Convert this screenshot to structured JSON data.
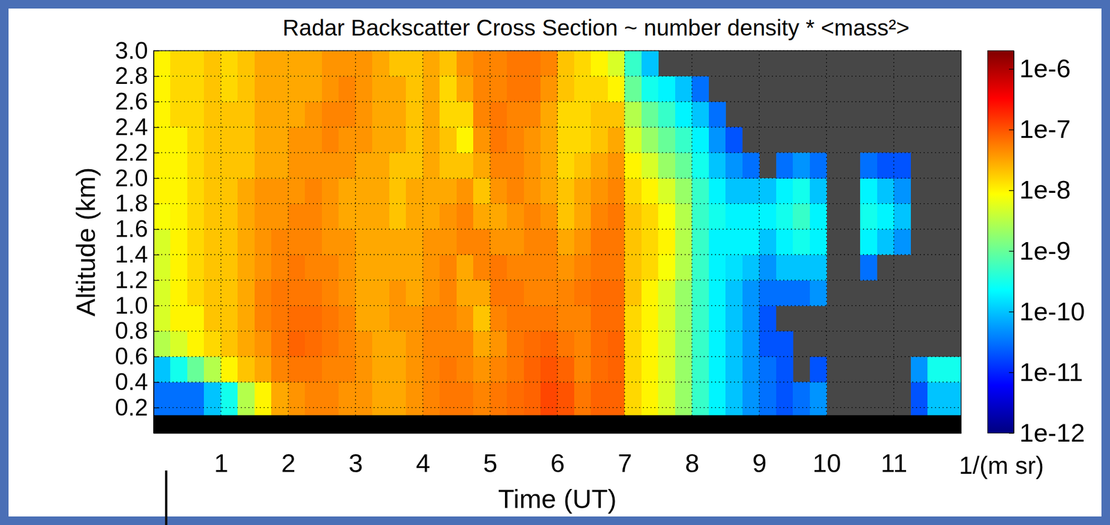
{
  "chart_data": {
    "type": "heatmap",
    "title": "Radar Backscatter Cross Section ~ number density * <mass²>",
    "xlabel": "Time (UT)",
    "ylabel": "Altitude (km)",
    "xlim": [
      0,
      12
    ],
    "ylim": [
      0,
      3
    ],
    "xticks": [
      1,
      2,
      3,
      4,
      5,
      6,
      7,
      8,
      9,
      10,
      11
    ],
    "yticks": [
      0.2,
      0.4,
      0.6,
      0.8,
      {
        "value": 1,
        "label": "1.0"
      },
      1.2,
      1.4,
      1.6,
      1.8,
      {
        "value": 2,
        "label": "2.0"
      },
      2.2,
      2.4,
      2.6,
      2.8,
      {
        "value": 3,
        "label": "3.0"
      }
    ],
    "grid": true,
    "x_edges": [
      0,
      0.25,
      0.5,
      0.75,
      1,
      1.25,
      1.5,
      1.75,
      2,
      2.25,
      2.5,
      2.75,
      3,
      3.25,
      3.5,
      3.75,
      4,
      4.25,
      4.5,
      4.75,
      5,
      5.25,
      5.5,
      5.75,
      6,
      6.25,
      6.5,
      6.75,
      7,
      7.25,
      7.5,
      7.75,
      8,
      8.25,
      8.5,
      8.75,
      9,
      9.25,
      9.5,
      9.75,
      10,
      10.25,
      10.5,
      10.75,
      11,
      11.25,
      11.5,
      11.75,
      12
    ],
    "y_edges": [
      0.14,
      0.4,
      0.6,
      0.8,
      1,
      1.2,
      1.4,
      1.6,
      1.8,
      2,
      2.2,
      2.4,
      2.6,
      2.8,
      3
    ],
    "z": [
      [
        3e-11,
        1e-10,
        3e-09,
        5e-09,
        5e-09,
        5e-09,
        5e-09,
        8e-09,
        1e-08,
        1e-08,
        1e-08,
        1e-08,
        1e-08,
        1e-08
      ],
      [
        3e-11,
        3e-10,
        5e-09,
        1e-08,
        1e-08,
        1e-08,
        1e-08,
        1e-08,
        1e-08,
        1e-08,
        1e-08,
        1.5e-08,
        1.5e-08,
        1.5e-08
      ],
      [
        3e-11,
        1e-09,
        1e-08,
        1e-08,
        1.5e-08,
        1.5e-08,
        1.5e-08,
        1.5e-08,
        1.5e-08,
        1.5e-08,
        1.5e-08,
        1.5e-08,
        1.5e-08,
        1.5e-08
      ],
      [
        1e-10,
        3e-09,
        1.5e-08,
        2e-08,
        2e-08,
        2e-08,
        2e-08,
        2e-08,
        2e-08,
        2e-08,
        2e-08,
        2e-08,
        2e-08,
        2e-08
      ],
      [
        3e-10,
        1e-08,
        2e-08,
        2e-08,
        2e-08,
        2e-08,
        2e-08,
        2e-08,
        2e-08,
        2e-08,
        2e-08,
        2e-08,
        1.5e-08,
        1.5e-08
      ],
      [
        3e-09,
        2e-08,
        3e-08,
        3e-08,
        3e-08,
        3e-08,
        3e-08,
        3e-08,
        3e-08,
        2e-08,
        2e-08,
        2e-08,
        2e-08,
        2e-08
      ],
      [
        1e-08,
        3e-08,
        4e-08,
        5e-08,
        5e-08,
        4e-08,
        4e-08,
        4e-08,
        4e-08,
        3e-08,
        3e-08,
        3e-08,
        3e-08,
        3e-08
      ],
      [
        3e-08,
        5e-08,
        6e-08,
        6e-08,
        6e-08,
        5e-08,
        5e-08,
        4e-08,
        4e-08,
        3e-08,
        3e-08,
        3e-08,
        3e-08,
        3e-08
      ],
      [
        4e-08,
        6e-08,
        8e-08,
        7e-08,
        6e-08,
        6e-08,
        5e-08,
        5e-08,
        4e-08,
        4e-08,
        4e-08,
        3e-08,
        3e-08,
        3e-08
      ],
      [
        5e-08,
        6e-08,
        7e-08,
        7e-08,
        6e-08,
        5e-08,
        5e-08,
        5e-08,
        5e-08,
        4e-08,
        4e-08,
        4e-08,
        3e-08,
        3e-08
      ],
      [
        5e-08,
        5e-08,
        6e-08,
        6e-08,
        5e-08,
        5e-08,
        4e-08,
        4e-08,
        4e-08,
        4e-08,
        5e-08,
        5e-08,
        4e-08,
        4e-08
      ],
      [
        4e-08,
        5e-08,
        5e-08,
        5e-08,
        4e-08,
        4e-08,
        4e-08,
        3e-08,
        3e-08,
        4e-08,
        4e-08,
        5e-08,
        5e-08,
        4e-08
      ],
      [
        4e-08,
        4e-08,
        4e-08,
        3e-08,
        3e-08,
        3e-08,
        3e-08,
        3e-08,
        3e-08,
        3e-08,
        4e-08,
        4e-08,
        4e-08,
        4e-08
      ],
      [
        3e-08,
        3e-08,
        3e-08,
        3e-08,
        3e-08,
        3e-08,
        3e-08,
        3e-08,
        3e-08,
        3e-08,
        3e-08,
        3e-08,
        3e-08,
        3e-08
      ],
      [
        3e-08,
        3e-08,
        3e-08,
        4e-08,
        4e-08,
        3e-08,
        3e-08,
        2e-08,
        2e-08,
        2e-08,
        3e-08,
        3e-08,
        3e-08,
        2e-08
      ],
      [
        4e-08,
        4e-08,
        4e-08,
        4e-08,
        3e-08,
        3e-08,
        3e-08,
        3e-08,
        3e-08,
        2e-08,
        2e-08,
        2e-08,
        2e-08,
        2e-08
      ],
      [
        5e-08,
        5e-08,
        5e-08,
        5e-08,
        4e-08,
        4e-08,
        4e-08,
        3e-08,
        3e-08,
        3e-08,
        3e-08,
        3e-08,
        3e-08,
        3e-08
      ],
      [
        6e-08,
        6e-08,
        5e-08,
        5e-08,
        5e-08,
        5e-08,
        4e-08,
        4e-08,
        3e-08,
        2e-08,
        2e-08,
        1.5e-08,
        1.5e-08,
        2e-08
      ],
      [
        6e-08,
        5e-08,
        5e-08,
        4e-08,
        3e-08,
        3e-08,
        5e-08,
        5e-08,
        4e-08,
        2e-08,
        1e-08,
        1.5e-08,
        3e-08,
        4e-08
      ],
      [
        5e-08,
        4e-08,
        3e-08,
        2e-08,
        3e-08,
        5e-08,
        5e-08,
        3e-08,
        2e-08,
        3e-08,
        4e-08,
        5e-08,
        5e-08,
        5e-08
      ],
      [
        6e-08,
        5e-08,
        4e-08,
        5e-08,
        6e-08,
        6e-08,
        4e-08,
        3e-08,
        4e-08,
        5e-08,
        6e-08,
        6e-08,
        5e-08,
        5e-08
      ],
      [
        7e-08,
        6e-08,
        6e-08,
        6e-08,
        6e-08,
        5e-08,
        4e-08,
        4e-08,
        5e-08,
        5e-08,
        5e-08,
        5e-08,
        6e-08,
        6e-08
      ],
      [
        8e-08,
        8e-08,
        7e-08,
        6e-08,
        5e-08,
        5e-08,
        5e-08,
        5e-08,
        4e-08,
        4e-08,
        4e-08,
        5e-08,
        6e-08,
        6e-08
      ],
      [
        1.2e-07,
        1e-07,
        8e-08,
        6e-08,
        5e-08,
        5e-08,
        5e-08,
        4e-08,
        3e-08,
        3e-08,
        3e-08,
        3e-08,
        4e-08,
        5e-08
      ],
      [
        1e-07,
        8e-08,
        6e-08,
        5e-08,
        5e-08,
        4e-08,
        3e-08,
        2e-08,
        2e-08,
        1.5e-08,
        1.5e-08,
        1.5e-08,
        2e-08,
        2e-08
      ],
      [
        6e-08,
        5e-08,
        5e-08,
        5e-08,
        6e-08,
        5e-08,
        4e-08,
        3e-08,
        3e-08,
        2e-08,
        1.5e-08,
        1.5e-08,
        1.5e-08,
        1.5e-08
      ],
      [
        8e-08,
        7e-08,
        7e-08,
        7e-08,
        7e-08,
        6e-08,
        6e-08,
        5e-08,
        4e-08,
        3e-08,
        2e-08,
        2e-08,
        1.5e-08,
        1e-08
      ],
      [
        8e-08,
        8e-08,
        8e-08,
        7e-08,
        7e-08,
        6e-08,
        6e-08,
        6e-08,
        5e-08,
        4e-08,
        3e-08,
        2e-08,
        1e-08,
        5e-09
      ],
      [
        1.5e-08,
        1.5e-08,
        1.5e-08,
        1.5e-08,
        2e-08,
        2e-08,
        2e-08,
        2e-08,
        1.5e-08,
        1e-08,
        5e-09,
        3e-09,
        1e-09,
        5e-10
      ],
      [
        1e-08,
        1e-08,
        1e-08,
        1e-08,
        1e-08,
        1.5e-08,
        1.5e-08,
        1.5e-08,
        1e-08,
        5e-09,
        2e-09,
        1e-09,
        3e-10,
        1e-10
      ],
      [
        5e-09,
        5e-09,
        5e-09,
        5e-09,
        5e-09,
        8e-09,
        1e-08,
        8e-09,
        5e-09,
        2e-09,
        1e-09,
        5e-10,
        2e-10,
        null
      ],
      [
        2e-09,
        2e-09,
        2e-09,
        2e-09,
        2e-09,
        3e-09,
        3e-09,
        3e-09,
        2e-09,
        1e-09,
        5e-10,
        2e-10,
        1e-10,
        null
      ],
      [
        5e-10,
        5e-10,
        5e-10,
        5e-10,
        5e-10,
        5e-10,
        5e-10,
        5e-10,
        5e-10,
        3e-10,
        2e-10,
        1e-10,
        3e-11,
        null
      ],
      [
        2e-10,
        2e-10,
        2e-10,
        2e-10,
        2e-10,
        2e-10,
        2e-10,
        3e-10,
        2e-10,
        1e-10,
        5e-11,
        3e-11,
        null,
        null
      ],
      [
        1e-10,
        1e-10,
        1e-10,
        1e-10,
        1e-10,
        1.5e-10,
        2e-10,
        2e-10,
        1e-10,
        5e-11,
        2e-11,
        null,
        null,
        null
      ],
      [
        5e-11,
        5e-11,
        5e-11,
        5e-11,
        5e-11,
        1e-10,
        2e-10,
        2e-10,
        1e-10,
        3e-11,
        null,
        null,
        null,
        null
      ],
      [
        3e-11,
        3e-11,
        2e-11,
        2e-11,
        3e-11,
        5e-11,
        1e-10,
        2e-10,
        1e-10,
        null,
        null,
        null,
        null,
        null
      ],
      [
        2e-11,
        2e-11,
        2e-11,
        null,
        3e-11,
        1e-10,
        2e-10,
        3e-10,
        2e-10,
        3e-11,
        null,
        null,
        null,
        null
      ],
      [
        3e-11,
        null,
        null,
        null,
        3e-11,
        1e-10,
        3e-10,
        5e-10,
        3e-10,
        5e-11,
        null,
        null,
        null,
        null
      ],
      [
        5e-11,
        2e-11,
        null,
        null,
        5e-11,
        1e-10,
        2e-10,
        2e-10,
        1e-10,
        3e-11,
        null,
        null,
        null,
        null
      ],
      [
        null,
        null,
        null,
        null,
        null,
        null,
        null,
        null,
        null,
        null,
        null,
        null,
        null,
        null
      ],
      [
        null,
        null,
        null,
        null,
        null,
        null,
        null,
        null,
        null,
        null,
        null,
        null,
        null,
        null
      ],
      [
        null,
        null,
        null,
        null,
        null,
        3e-11,
        2e-10,
        3e-10,
        2e-10,
        3e-11,
        null,
        null,
        null,
        null
      ],
      [
        null,
        null,
        null,
        null,
        null,
        null,
        1e-10,
        2e-10,
        1e-10,
        2e-11,
        null,
        null,
        null,
        null
      ],
      [
        null,
        null,
        null,
        null,
        null,
        null,
        5e-11,
        1e-10,
        5e-11,
        2e-11,
        null,
        null,
        null,
        null
      ],
      [
        2e-11,
        5e-11,
        null,
        null,
        null,
        null,
        null,
        null,
        null,
        null,
        null,
        null,
        null,
        null
      ],
      [
        1e-10,
        3e-10,
        null,
        null,
        null,
        null,
        null,
        null,
        null,
        null,
        null,
        null,
        null,
        null
      ],
      [
        1e-10,
        3e-10,
        null,
        null,
        null,
        null,
        null,
        null,
        null,
        null,
        null,
        null,
        null,
        null
      ]
    ],
    "zlim": [
      1e-12,
      2e-06
    ],
    "zticks": [
      {
        "value": 1e-12,
        "label": "1e-12"
      },
      {
        "value": 1e-11,
        "label": "1e-11"
      },
      {
        "value": 1e-10,
        "label": "1e-10"
      },
      {
        "value": 1e-09,
        "label": "1e-9"
      },
      {
        "value": 1e-08,
        "label": "1e-8"
      },
      {
        "value": 1e-07,
        "label": "1e-7"
      },
      {
        "value": 1e-06,
        "label": "1e-6"
      }
    ],
    "zlabel": "1/(m sr)"
  }
}
